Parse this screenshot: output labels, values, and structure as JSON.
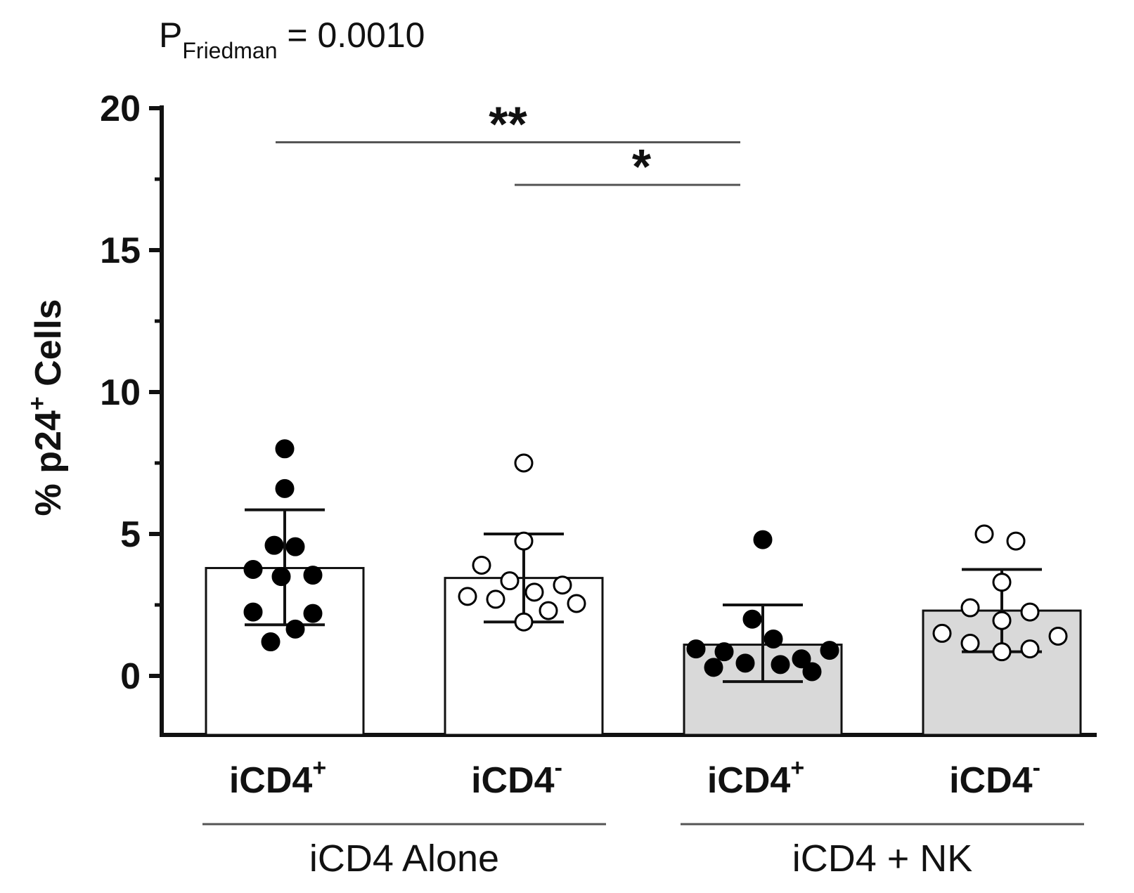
{
  "chart_data": {
    "type": "bar",
    "annotation": {
      "p_prefix": "P",
      "p_subscript": "Friedman",
      "p_rest": " = 0.0010"
    },
    "ylabel": {
      "main": "%  p24",
      "sup": "+",
      "rest": " Cells"
    },
    "ylim": [
      -2,
      20
    ],
    "yticks": [
      0,
      5,
      10,
      15,
      20
    ],
    "ytick_labels": [
      "0",
      "5",
      "10",
      "15",
      "20"
    ],
    "minor_ticks": [
      2.5,
      7.5,
      12.5,
      17.5
    ],
    "categories": [
      {
        "base": "iCD4",
        "sup": "+"
      },
      {
        "base": "iCD4",
        "sup": "-"
      },
      {
        "base": "iCD4",
        "sup": "+"
      },
      {
        "base": "iCD4",
        "sup": "-"
      }
    ],
    "groups": [
      {
        "label": "iCD4 Alone",
        "categories": [
          0,
          1
        ]
      },
      {
        "label": "iCD4 + NK",
        "categories": [
          2,
          3
        ]
      }
    ],
    "bars": [
      {
        "mean": 3.8,
        "sd_low": 1.8,
        "sd_high": 5.85,
        "fill": "#ffffff",
        "marker": "filled",
        "points": [
          8.0,
          6.6,
          4.6,
          4.55,
          3.75,
          3.55,
          3.5,
          2.25,
          2.2,
          1.65,
          1.2
        ]
      },
      {
        "mean": 3.45,
        "sd_low": 1.9,
        "sd_high": 5.0,
        "fill": "#ffffff",
        "marker": "open",
        "points": [
          7.5,
          4.75,
          3.9,
          3.35,
          3.2,
          2.95,
          2.8,
          2.7,
          2.55,
          2.3,
          1.9
        ]
      },
      {
        "mean": 1.1,
        "sd_low": -0.2,
        "sd_high": 2.5,
        "fill": "#d9d9d9",
        "marker": "filled",
        "points": [
          4.8,
          2.0,
          1.3,
          0.95,
          0.9,
          0.85,
          0.6,
          0.45,
          0.4,
          0.3,
          0.15
        ]
      },
      {
        "mean": 2.3,
        "sd_low": 0.85,
        "sd_high": 3.75,
        "fill": "#d9d9d9",
        "marker": "open",
        "points": [
          5.0,
          4.75,
          3.3,
          2.4,
          2.25,
          1.95,
          1.5,
          1.4,
          1.15,
          0.95,
          0.85
        ]
      }
    ],
    "comparisons": [
      {
        "from": 0,
        "to": 2,
        "y": 18.8,
        "label": "**"
      },
      {
        "from": 1,
        "to": 2,
        "y": 17.3,
        "label": "*"
      }
    ]
  }
}
